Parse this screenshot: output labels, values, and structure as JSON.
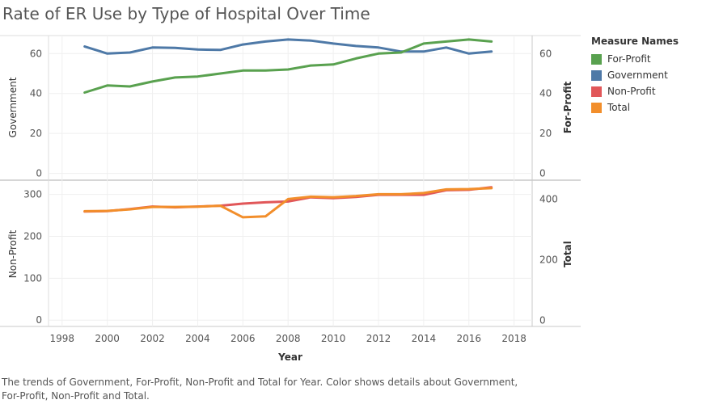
{
  "title": "Rate of ER Use by Type of Hospital Over Time",
  "caption": "The trends of Government, For-Profit, Non-Profit and Total for Year.  Color shows details about Government, For-Profit, Non-Profit and Total.",
  "legend": {
    "title": "Measure Names",
    "items": [
      {
        "label": "For-Profit",
        "color": "#59a14f"
      },
      {
        "label": "Government",
        "color": "#4e79a7"
      },
      {
        "label": "Non-Profit",
        "color": "#e15759"
      },
      {
        "label": "Total",
        "color": "#f28e2b"
      }
    ]
  },
  "chart_data": [
    {
      "type": "line",
      "panel": "top",
      "xlabel": "Year",
      "x_ticks": [
        1998,
        2000,
        2002,
        2004,
        2006,
        2008,
        2010,
        2012,
        2014,
        2016,
        2018
      ],
      "left_axis": {
        "label": "Government",
        "ticks": [
          0,
          20,
          40,
          60
        ],
        "range": [
          -3,
          69
        ]
      },
      "right_axis": {
        "label": "For-Profit",
        "ticks": [
          0,
          20,
          40,
          60
        ],
        "range": [
          -3,
          69
        ]
      },
      "x": [
        1999,
        2000,
        2001,
        2002,
        2003,
        2004,
        2005,
        2006,
        2007,
        2008,
        2009,
        2010,
        2011,
        2012,
        2013,
        2014,
        2015,
        2016,
        2017
      ],
      "series": [
        {
          "name": "Government",
          "axis": "left",
          "color": "#4e79a7",
          "values": [
            63.5,
            60,
            60.5,
            63,
            62.8,
            62,
            61.8,
            64.5,
            66,
            67,
            66.5,
            65,
            63.8,
            63,
            61,
            61,
            63,
            60,
            61
          ]
        },
        {
          "name": "For-Profit",
          "axis": "right",
          "color": "#59a14f",
          "values": [
            40.5,
            44,
            43.5,
            46,
            48,
            48.5,
            50,
            51.5,
            51.5,
            52,
            54,
            54.5,
            57.5,
            60,
            60.5,
            65,
            66,
            67,
            66
          ]
        }
      ]
    },
    {
      "type": "line",
      "panel": "bottom",
      "xlabel": "Year",
      "left_axis": {
        "label": "Non-Profit",
        "ticks": [
          0,
          100,
          200,
          300
        ],
        "range": [
          -15,
          330
        ]
      },
      "right_axis": {
        "label": "Total",
        "ticks": [
          0,
          200,
          400
        ],
        "range": [
          -20,
          457
        ]
      },
      "x": [
        1999,
        2000,
        2001,
        2002,
        2003,
        2004,
        2005,
        2006,
        2007,
        2008,
        2009,
        2010,
        2011,
        2012,
        2013,
        2014,
        2015,
        2016,
        2017
      ],
      "series": [
        {
          "name": "Non-Profit",
          "axis": "left",
          "color": "#e15759",
          "values": [
            259,
            260,
            265,
            271,
            269,
            271,
            273,
            278,
            281,
            283,
            293,
            291,
            294,
            299,
            299,
            299,
            310,
            311,
            317
          ]
        },
        {
          "name": "Total",
          "axis": "right",
          "color": "#f28e2b",
          "values": [
            360,
            361,
            366,
            374,
            374,
            375,
            378,
            340,
            343,
            400,
            408,
            406,
            410,
            416,
            416,
            420,
            432,
            433,
            436
          ]
        }
      ]
    }
  ]
}
